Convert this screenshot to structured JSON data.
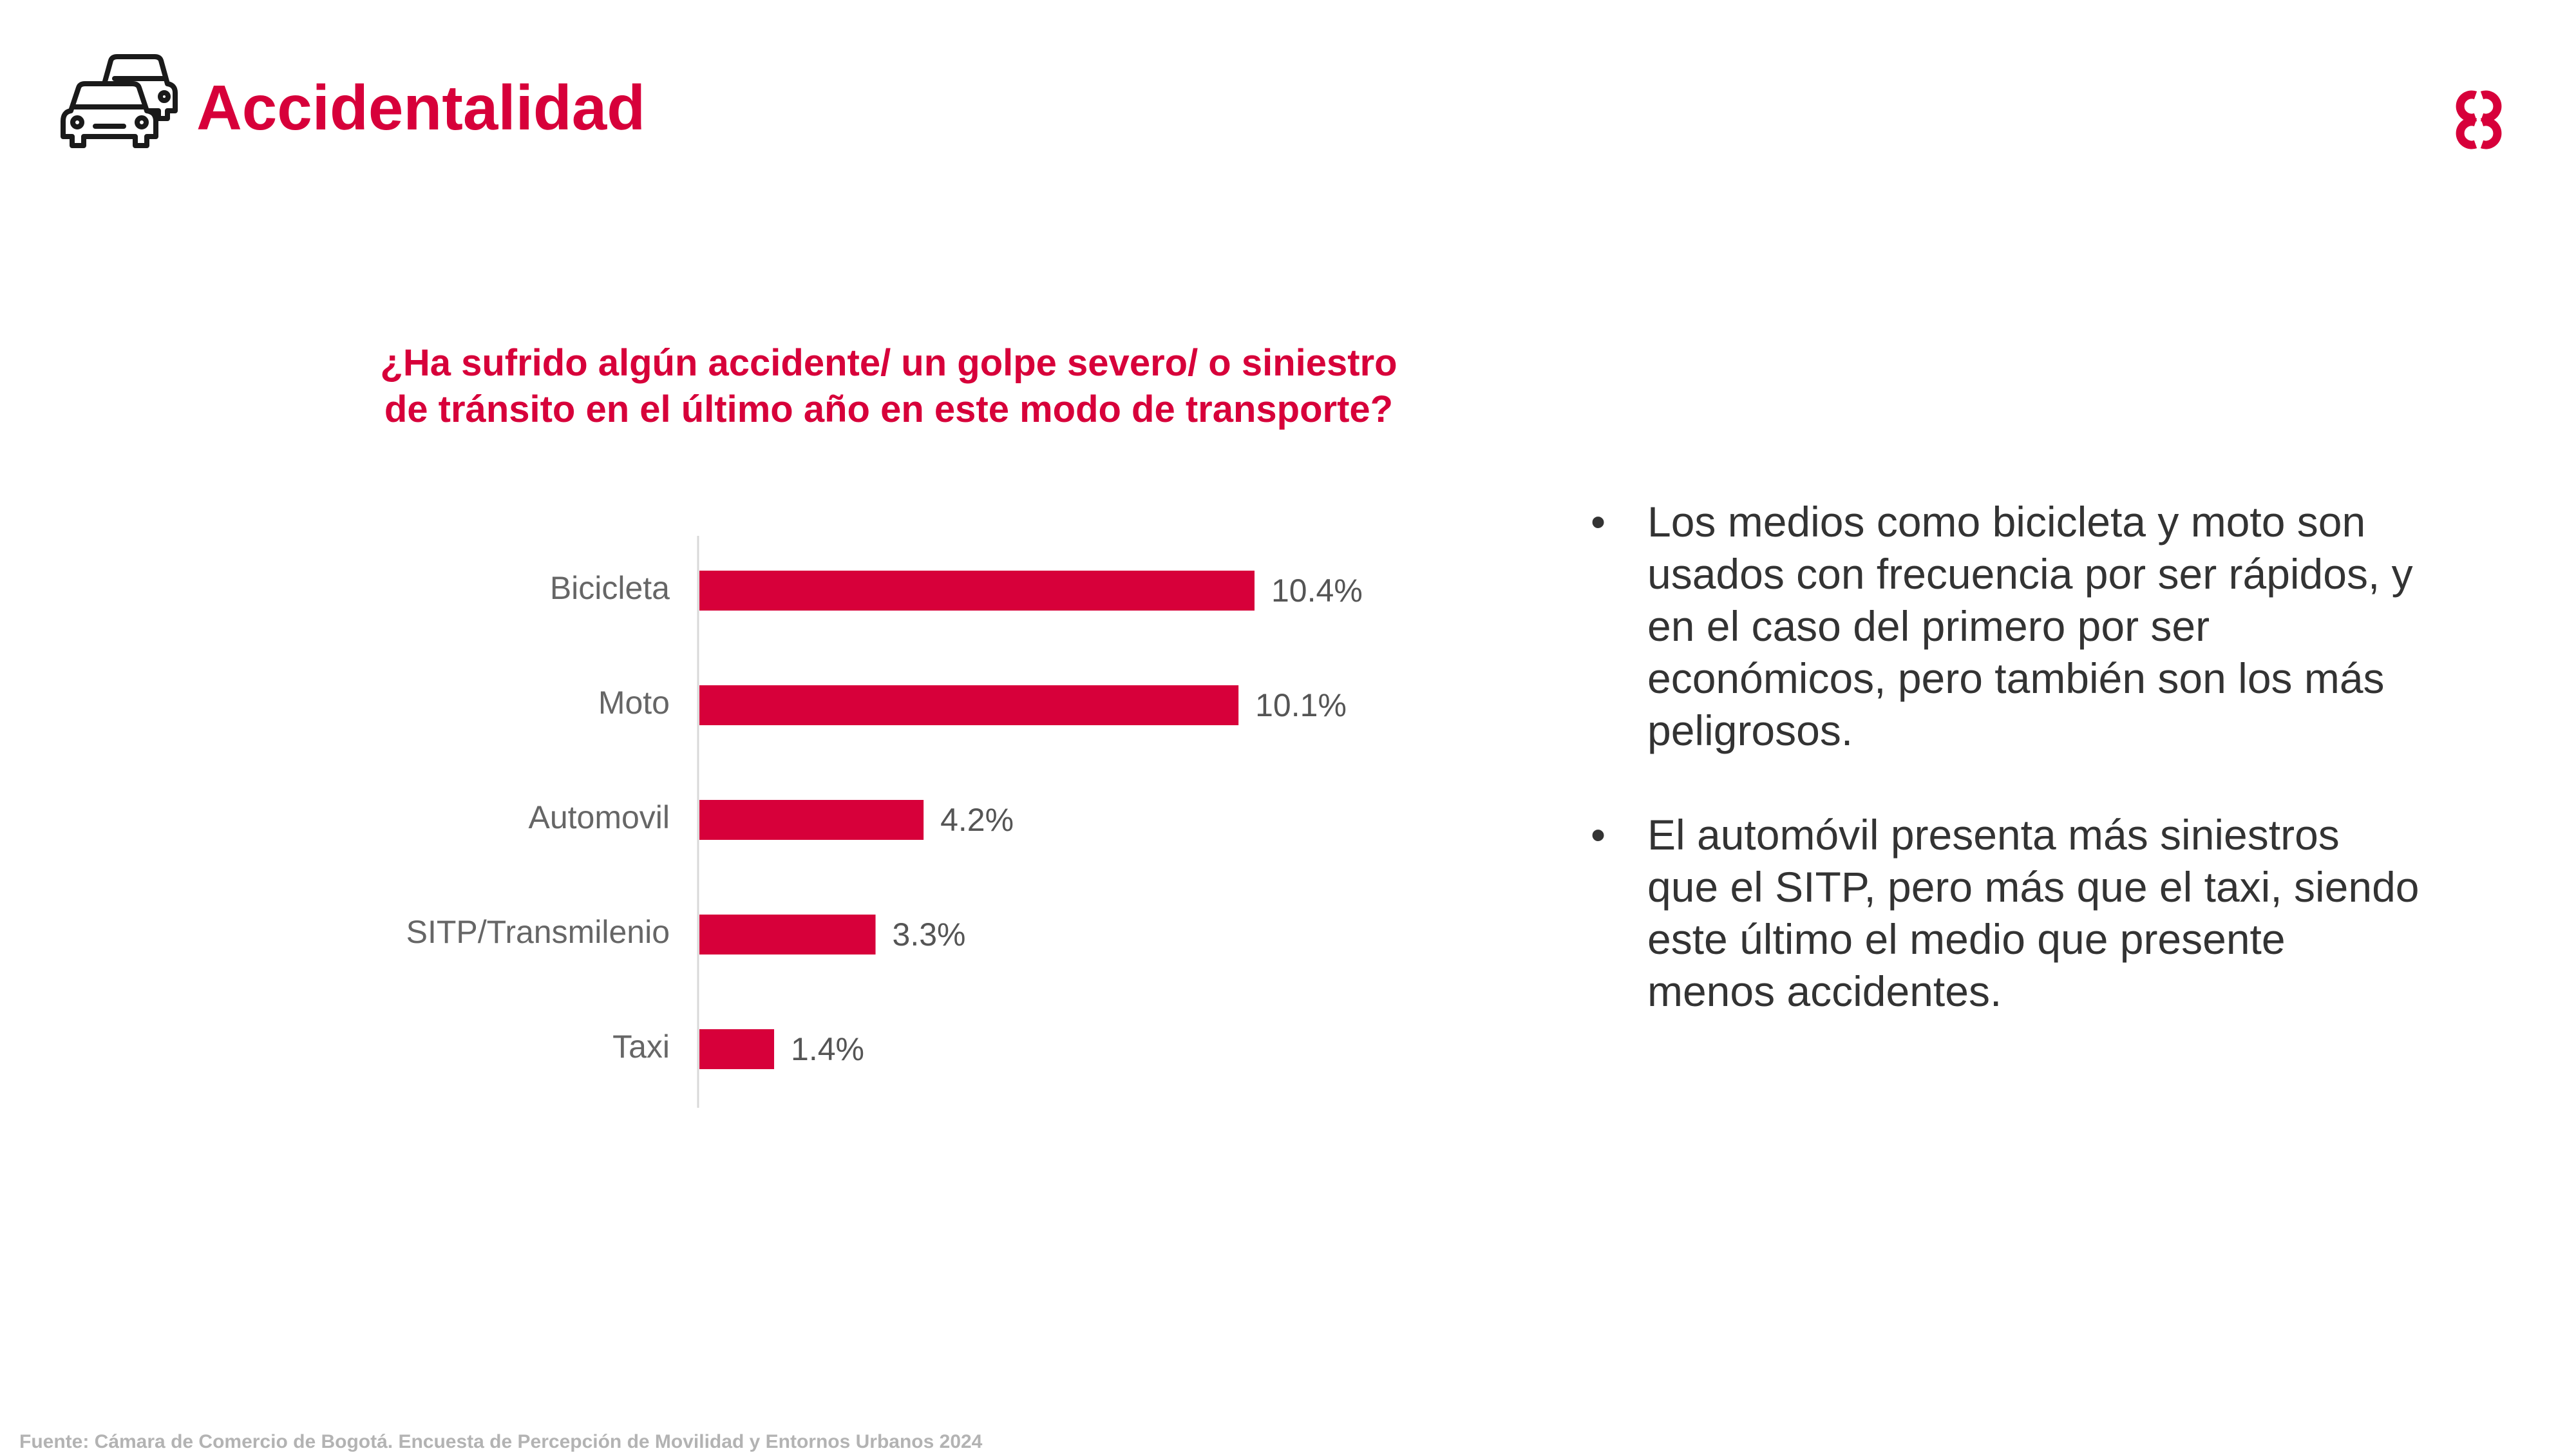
{
  "header": {
    "title": "Accidentalidad",
    "icon": "cars-icon",
    "logo": "ccb-logo"
  },
  "colors": {
    "accent": "#d7003a",
    "text": "#333333",
    "label": "#666666",
    "source": "#b3b3b3"
  },
  "chart_data": {
    "type": "bar",
    "orientation": "horizontal",
    "title": "¿Ha sufrido algún accidente/ un golpe severo/ o siniestro de tránsito en el último año en este modo de transporte?",
    "categories": [
      "Bicicleta",
      "Moto",
      "Automovil",
      "SITP/Transmilenio",
      "Taxi"
    ],
    "values": [
      10.4,
      10.1,
      4.2,
      3.3,
      1.4
    ],
    "value_labels": [
      "10.4%",
      "10.1%",
      "4.2%",
      "3.3%",
      "1.4%"
    ],
    "xlabel": "",
    "ylabel": "",
    "xlim": [
      0,
      10.4
    ],
    "grid": false,
    "legend": "none"
  },
  "bullets": [
    {
      "marker": "•",
      "text": "Los medios como bicicleta y moto son usados con frecuencia por ser rápidos, y en el caso del primero por ser económicos, pero también son los más peligrosos."
    },
    {
      "marker": "•",
      "text": "El automóvil presenta más siniestros que el SITP, pero más que el taxi, siendo este último el medio que presente menos accidentes."
    }
  ],
  "footer": {
    "source": "Fuente: Cámara de Comercio de Bogotá. Encuesta de Percepción de Movilidad y Entornos Urbanos 2024"
  }
}
